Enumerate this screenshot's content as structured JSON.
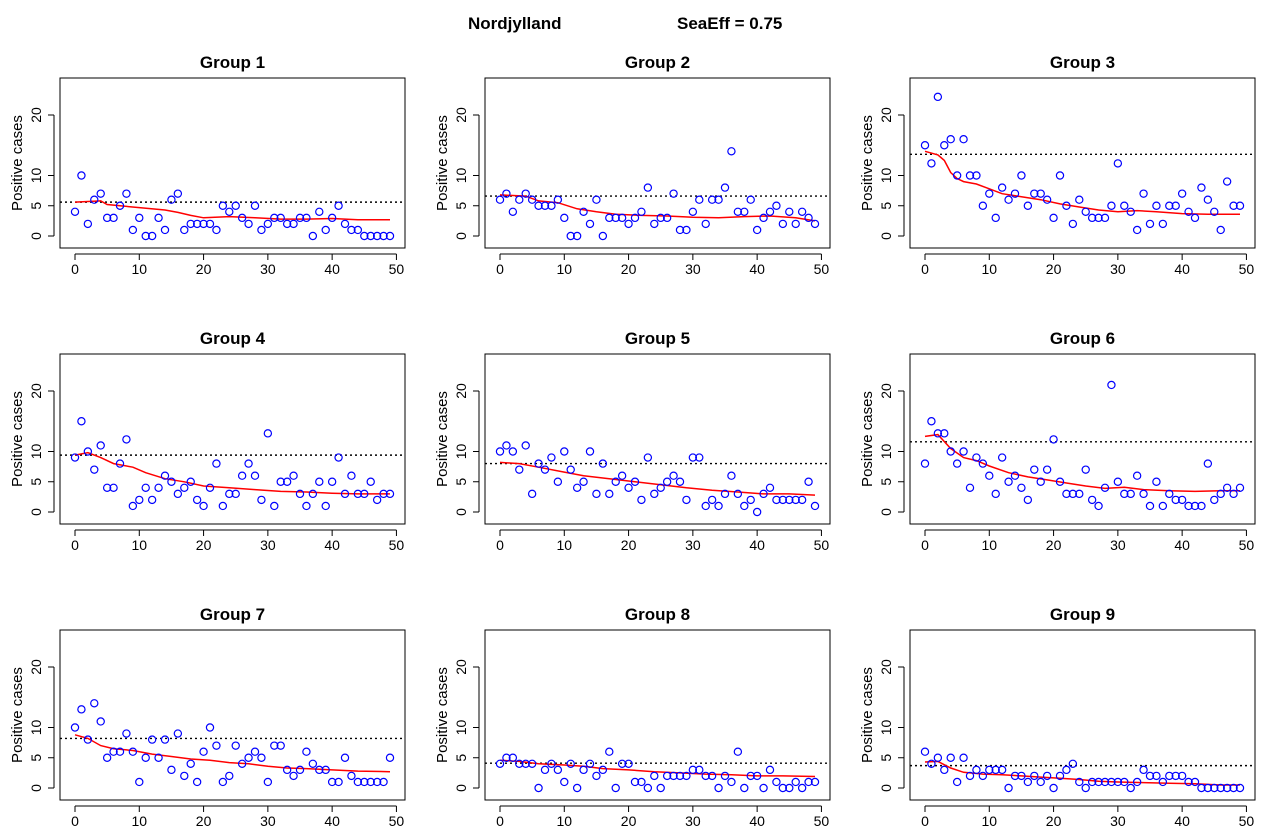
{
  "header": {
    "region": "Nordjylland",
    "seaeff": "SeaEff = 0.75"
  },
  "chart_data": [
    {
      "type": "scatter",
      "title": "Group 1",
      "ylabel": "Positive cases",
      "xlim": [
        0,
        49
      ],
      "ylim": [
        0,
        25
      ],
      "x_ticks": [
        0,
        10,
        20,
        30,
        40,
        50
      ],
      "y_ticks": [
        0,
        5,
        10,
        20
      ],
      "threshold": 5.6,
      "points": [
        4,
        10,
        2,
        6,
        7,
        3,
        3,
        5,
        7,
        1,
        3,
        0,
        0,
        3,
        1,
        6,
        7,
        1,
        2,
        2,
        2,
        2,
        1,
        5,
        4,
        5,
        3,
        2,
        5,
        1,
        2,
        3,
        3,
        2,
        2,
        3,
        3,
        0,
        4,
        1,
        3,
        5,
        2,
        1,
        1,
        0,
        0,
        0,
        0,
        0
      ],
      "trend": [
        [
          0,
          5.6
        ],
        [
          4,
          5.8
        ],
        [
          5,
          5.2
        ],
        [
          7,
          5.0
        ],
        [
          10,
          4.7
        ],
        [
          14,
          4.3
        ],
        [
          16,
          3.9
        ],
        [
          18,
          3.4
        ],
        [
          20,
          3.0
        ],
        [
          24,
          3.2
        ],
        [
          28,
          3.0
        ],
        [
          32,
          2.8
        ],
        [
          36,
          2.8
        ],
        [
          40,
          2.9
        ],
        [
          44,
          2.7
        ],
        [
          49,
          2.7
        ]
      ]
    },
    {
      "type": "scatter",
      "title": "Group 2",
      "ylabel": "Positive cases",
      "xlim": [
        0,
        49
      ],
      "ylim": [
        0,
        25
      ],
      "x_ticks": [
        0,
        10,
        20,
        30,
        40,
        50
      ],
      "y_ticks": [
        0,
        5,
        10,
        20
      ],
      "threshold": 6.6,
      "points": [
        6,
        7,
        4,
        6,
        7,
        6,
        5,
        5,
        5,
        6,
        3,
        0,
        0,
        4,
        2,
        6,
        0,
        3,
        3,
        3,
        2,
        3,
        4,
        8,
        2,
        3,
        3,
        7,
        1,
        1,
        4,
        6,
        2,
        6,
        6,
        8,
        14,
        4,
        4,
        6,
        1,
        3,
        4,
        5,
        2,
        4,
        2,
        4,
        3,
        2
      ],
      "trend": [
        [
          0,
          6.8
        ],
        [
          4,
          6.6
        ],
        [
          6,
          5.8
        ],
        [
          9,
          5.5
        ],
        [
          12,
          4.5
        ],
        [
          15,
          4.0
        ],
        [
          18,
          3.6
        ],
        [
          22,
          3.4
        ],
        [
          26,
          3.3
        ],
        [
          30,
          3.1
        ],
        [
          34,
          3.0
        ],
        [
          38,
          3.2
        ],
        [
          42,
          3.3
        ],
        [
          46,
          3.0
        ],
        [
          49,
          2.5
        ]
      ]
    },
    {
      "type": "scatter",
      "title": "Group 3",
      "ylabel": "Positive cases",
      "xlim": [
        0,
        49
      ],
      "ylim": [
        0,
        25
      ],
      "x_ticks": [
        0,
        10,
        20,
        30,
        40,
        50
      ],
      "y_ticks": [
        0,
        5,
        10,
        20
      ],
      "threshold": 13.5,
      "points": [
        15,
        12,
        23,
        15,
        16,
        10,
        16,
        10,
        10,
        5,
        7,
        3,
        8,
        6,
        7,
        10,
        5,
        7,
        7,
        6,
        3,
        10,
        5,
        2,
        6,
        4,
        3,
        3,
        3,
        5,
        12,
        5,
        4,
        1,
        7,
        2,
        5,
        2,
        5,
        5,
        7,
        4,
        3,
        8,
        6,
        4,
        1,
        9,
        5,
        5
      ],
      "trend": [
        [
          0,
          14.0
        ],
        [
          2,
          13.4
        ],
        [
          3,
          12.5
        ],
        [
          4,
          10.5
        ],
        [
          5,
          9.5
        ],
        [
          6,
          9.0
        ],
        [
          8,
          8.6
        ],
        [
          10,
          7.8
        ],
        [
          12,
          7.0
        ],
        [
          15,
          6.5
        ],
        [
          18,
          6.0
        ],
        [
          21,
          5.3
        ],
        [
          24,
          4.8
        ],
        [
          27,
          4.3
        ],
        [
          30,
          4.0
        ],
        [
          33,
          4.2
        ],
        [
          36,
          4.0
        ],
        [
          40,
          3.7
        ],
        [
          44,
          3.6
        ],
        [
          49,
          3.6
        ]
      ]
    },
    {
      "type": "scatter",
      "title": "Group 4",
      "ylabel": "Positive cases",
      "xlim": [
        0,
        49
      ],
      "ylim": [
        0,
        25
      ],
      "x_ticks": [
        0,
        10,
        20,
        30,
        40,
        50
      ],
      "y_ticks": [
        0,
        5,
        10,
        20
      ],
      "threshold": 9.4,
      "points": [
        9,
        15,
        10,
        7,
        11,
        4,
        4,
        8,
        12,
        1,
        2,
        4,
        2,
        4,
        6,
        5,
        3,
        4,
        5,
        2,
        1,
        4,
        8,
        1,
        3,
        3,
        6,
        8,
        6,
        2,
        13,
        1,
        5,
        5,
        6,
        3,
        1,
        3,
        5,
        1,
        5,
        9,
        3,
        6,
        3,
        3,
        5,
        2,
        3,
        3
      ],
      "trend": [
        [
          0,
          9.4
        ],
        [
          2,
          9.8
        ],
        [
          4,
          9.0
        ],
        [
          6,
          8.0
        ],
        [
          9,
          7.4
        ],
        [
          11,
          6.5
        ],
        [
          14,
          5.5
        ],
        [
          17,
          5.0
        ],
        [
          20,
          4.3
        ],
        [
          24,
          4.0
        ],
        [
          28,
          3.7
        ],
        [
          32,
          3.4
        ],
        [
          36,
          3.3
        ],
        [
          40,
          3.1
        ],
        [
          44,
          3.0
        ],
        [
          49,
          3.0
        ]
      ]
    },
    {
      "type": "scatter",
      "title": "Group 5",
      "ylabel": "Positive cases",
      "xlim": [
        0,
        49
      ],
      "ylim": [
        0,
        25
      ],
      "x_ticks": [
        0,
        10,
        20,
        30,
        40,
        50
      ],
      "y_ticks": [
        0,
        5,
        10,
        20
      ],
      "threshold": 8.0,
      "points": [
        10,
        11,
        10,
        7,
        11,
        3,
        8,
        7,
        9,
        5,
        10,
        7,
        4,
        5,
        10,
        3,
        8,
        3,
        5,
        6,
        4,
        5,
        2,
        9,
        3,
        4,
        5,
        6,
        5,
        2,
        9,
        9,
        1,
        2,
        1,
        3,
        6,
        3,
        1,
        2,
        0,
        3,
        4,
        2,
        2,
        2,
        2,
        2,
        5,
        1
      ],
      "trend": [
        [
          0,
          8.2
        ],
        [
          3,
          8.0
        ],
        [
          6,
          7.4
        ],
        [
          10,
          6.6
        ],
        [
          13,
          6.0
        ],
        [
          17,
          5.5
        ],
        [
          21,
          5.0
        ],
        [
          25,
          4.5
        ],
        [
          29,
          4.0
        ],
        [
          33,
          3.6
        ],
        [
          37,
          3.3
        ],
        [
          41,
          3.0
        ],
        [
          45,
          3.0
        ],
        [
          49,
          2.8
        ]
      ]
    },
    {
      "type": "scatter",
      "title": "Group 6",
      "ylabel": "Positive cases",
      "xlim": [
        0,
        49
      ],
      "ylim": [
        0,
        25
      ],
      "x_ticks": [
        0,
        10,
        20,
        30,
        40,
        50
      ],
      "y_ticks": [
        0,
        5,
        10,
        20
      ],
      "threshold": 11.6,
      "points": [
        8,
        15,
        13,
        13,
        10,
        8,
        10,
        4,
        9,
        8,
        6,
        3,
        9,
        5,
        6,
        4,
        2,
        7,
        5,
        7,
        12,
        5,
        3,
        3,
        3,
        7,
        2,
        1,
        4,
        21,
        5,
        3,
        3,
        6,
        3,
        1,
        5,
        1,
        3,
        2,
        2,
        1,
        1,
        1,
        8,
        2,
        3,
        4,
        3,
        4
      ],
      "trend": [
        [
          0,
          12.5
        ],
        [
          2,
          12.8
        ],
        [
          4,
          10.5
        ],
        [
          6,
          9.0
        ],
        [
          8,
          8.5
        ],
        [
          10,
          7.6
        ],
        [
          13,
          6.5
        ],
        [
          16,
          5.8
        ],
        [
          19,
          5.3
        ],
        [
          22,
          4.8
        ],
        [
          25,
          4.3
        ],
        [
          28,
          3.9
        ],
        [
          31,
          4.1
        ],
        [
          34,
          3.7
        ],
        [
          38,
          3.5
        ],
        [
          42,
          3.4
        ],
        [
          46,
          3.5
        ],
        [
          49,
          3.5
        ]
      ]
    },
    {
      "type": "scatter",
      "title": "Group 7",
      "ylabel": "Positive cases",
      "xlim": [
        0,
        49
      ],
      "ylim": [
        0,
        25
      ],
      "x_ticks": [
        0,
        10,
        20,
        30,
        40,
        50
      ],
      "y_ticks": [
        0,
        5,
        10,
        20
      ],
      "threshold": 8.2,
      "points": [
        10,
        13,
        8,
        14,
        11,
        5,
        6,
        6,
        9,
        6,
        1,
        5,
        8,
        5,
        8,
        3,
        9,
        2,
        4,
        1,
        6,
        10,
        7,
        1,
        2,
        7,
        4,
        5,
        6,
        5,
        1,
        7,
        7,
        3,
        2,
        3,
        6,
        4,
        3,
        3,
        1,
        1,
        5,
        2,
        1,
        1,
        1,
        1,
        1,
        5
      ],
      "trend": [
        [
          0,
          8.8
        ],
        [
          2,
          8.2
        ],
        [
          4,
          7.0
        ],
        [
          6,
          6.5
        ],
        [
          9,
          6.2
        ],
        [
          12,
          5.6
        ],
        [
          15,
          5.2
        ],
        [
          18,
          4.8
        ],
        [
          21,
          4.6
        ],
        [
          24,
          4.2
        ],
        [
          27,
          4.0
        ],
        [
          30,
          3.6
        ],
        [
          33,
          3.3
        ],
        [
          36,
          3.2
        ],
        [
          40,
          3.0
        ],
        [
          44,
          2.8
        ],
        [
          49,
          2.7
        ]
      ]
    },
    {
      "type": "scatter",
      "title": "Group 8",
      "ylabel": "Positive cases",
      "xlim": [
        0,
        49
      ],
      "ylim": [
        0,
        25
      ],
      "x_ticks": [
        0,
        10,
        20,
        30,
        40,
        50
      ],
      "y_ticks": [
        0,
        5,
        10,
        20
      ],
      "threshold": 4.1,
      "points": [
        4,
        5,
        5,
        4,
        4,
        4,
        0,
        3,
        4,
        3,
        1,
        4,
        0,
        3,
        4,
        2,
        3,
        6,
        0,
        4,
        4,
        1,
        1,
        0,
        2,
        0,
        2,
        2,
        2,
        2,
        3,
        3,
        2,
        2,
        0,
        2,
        1,
        6,
        0,
        2,
        2,
        0,
        3,
        1,
        0,
        0,
        1,
        0,
        1,
        1
      ],
      "trend": [
        [
          0,
          4.6
        ],
        [
          3,
          4.4
        ],
        [
          6,
          4.0
        ],
        [
          10,
          3.8
        ],
        [
          13,
          3.6
        ],
        [
          16,
          3.2
        ],
        [
          20,
          3.0
        ],
        [
          24,
          2.7
        ],
        [
          28,
          2.5
        ],
        [
          32,
          2.3
        ],
        [
          36,
          2.2
        ],
        [
          40,
          2.0
        ],
        [
          44,
          2.0
        ],
        [
          49,
          1.9
        ]
      ]
    },
    {
      "type": "scatter",
      "title": "Group 9",
      "ylabel": "Positive cases",
      "xlim": [
        0,
        49
      ],
      "ylim": [
        0,
        25
      ],
      "x_ticks": [
        0,
        10,
        20,
        30,
        40,
        50
      ],
      "y_ticks": [
        0,
        5,
        10,
        20
      ],
      "threshold": 3.7,
      "points": [
        6,
        4,
        5,
        3,
        5,
        1,
        5,
        2,
        3,
        2,
        3,
        3,
        3,
        0,
        2,
        2,
        1,
        2,
        1,
        2,
        0,
        2,
        3,
        4,
        1,
        0,
        1,
        1,
        1,
        1,
        1,
        1,
        0,
        1,
        3,
        2,
        2,
        1,
        2,
        2,
        2,
        1,
        1,
        0,
        0,
        0,
        0,
        0,
        0,
        0
      ],
      "trend": [
        [
          0,
          4.3
        ],
        [
          2,
          4.4
        ],
        [
          4,
          3.3
        ],
        [
          6,
          2.6
        ],
        [
          9,
          2.3
        ],
        [
          12,
          2.2
        ],
        [
          15,
          2.0
        ],
        [
          18,
          1.8
        ],
        [
          21,
          1.6
        ],
        [
          24,
          1.4
        ],
        [
          27,
          1.1
        ],
        [
          30,
          1.0
        ],
        [
          34,
          0.9
        ],
        [
          38,
          0.8
        ],
        [
          42,
          0.7
        ],
        [
          46,
          0.5
        ],
        [
          49,
          0.5
        ]
      ]
    }
  ]
}
